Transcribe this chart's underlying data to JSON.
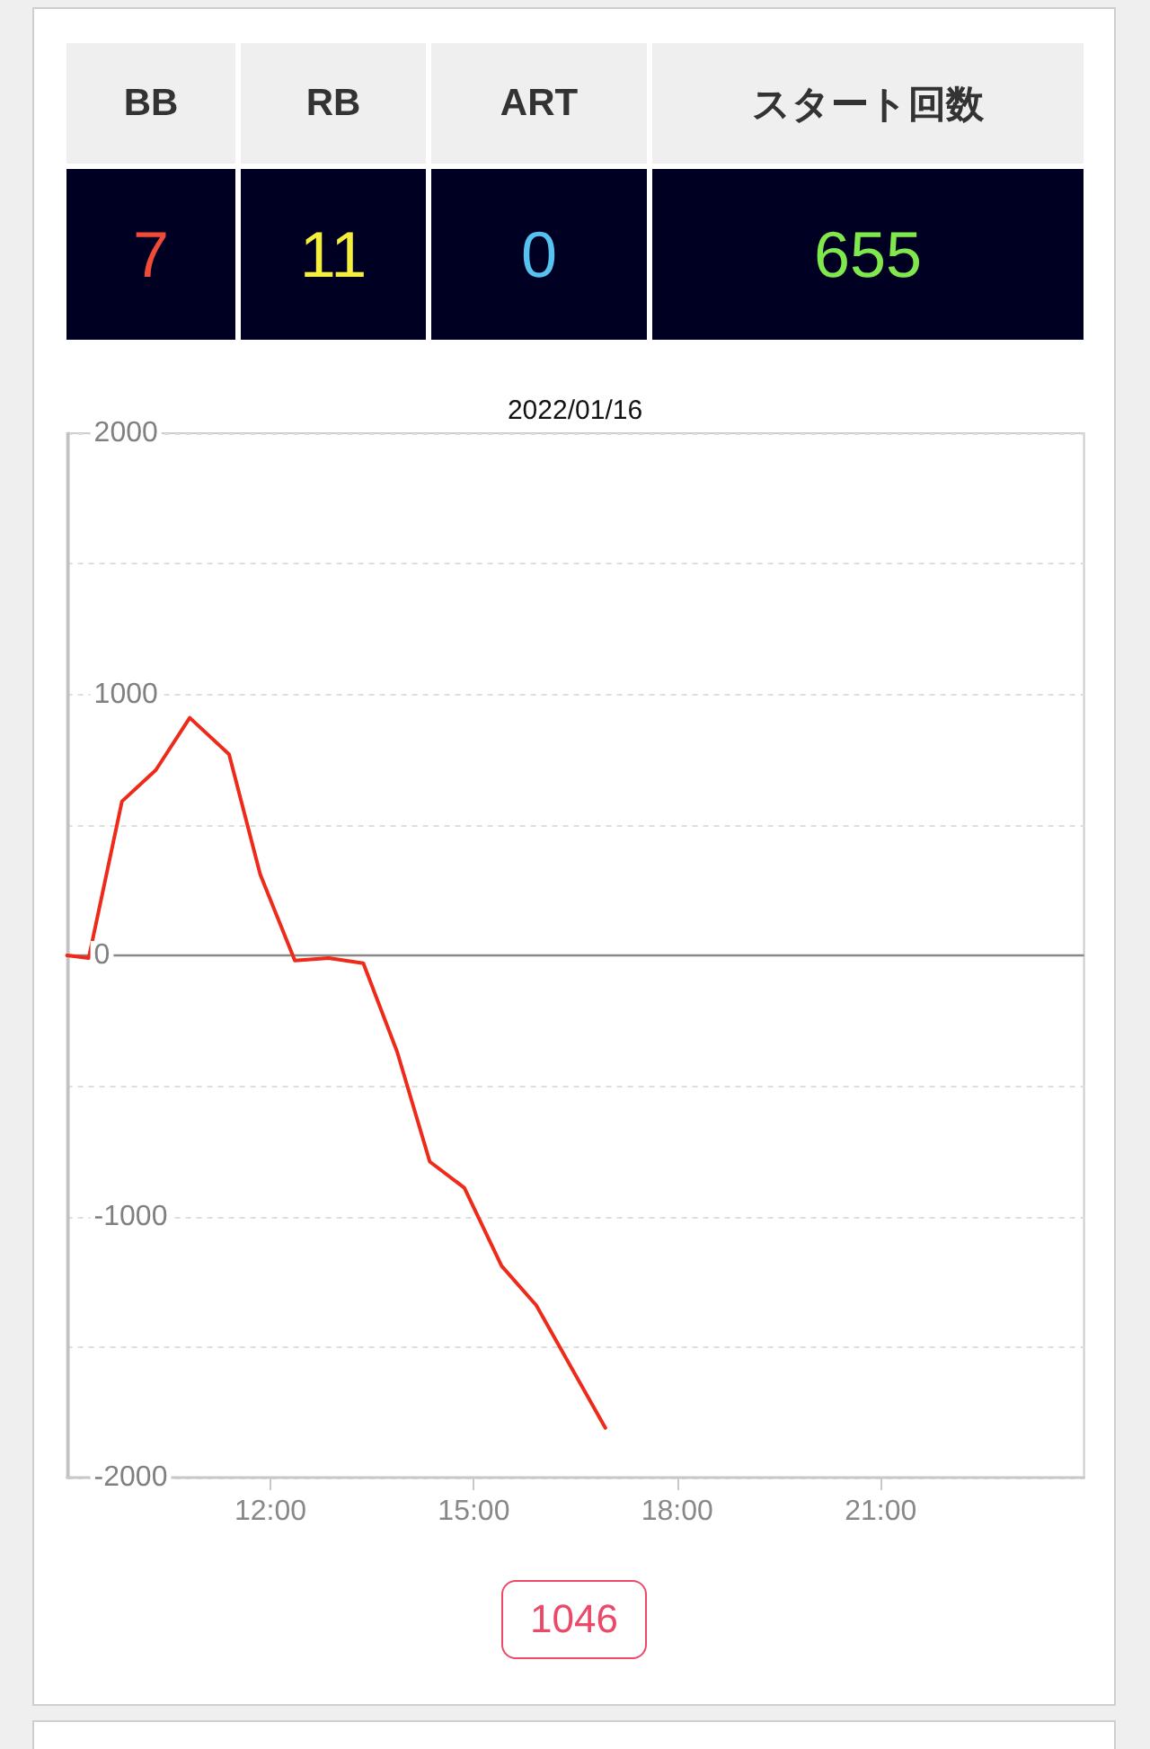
{
  "chart_data": [
    {
      "type": "other",
      "categories": [
        "BB",
        "RB",
        "ART",
        "スタート回数"
      ],
      "values": [
        7,
        11,
        0,
        655
      ],
      "data_labels": true
    },
    {
      "type": "line",
      "title": "2022/01/16",
      "x": [
        9,
        9.32,
        9.81,
        10.31,
        10.81,
        11.39,
        11.85,
        12.36,
        12.86,
        13.37,
        13.87,
        14.35,
        14.86,
        15.41,
        15.92,
        16.94
      ],
      "series": [
        {
          "color": "#ee2a1a",
          "values": [
            0,
            -10,
            590,
            710,
            910,
            770,
            310,
            -20,
            -10,
            -30,
            -370,
            -790,
            -890,
            -1190,
            -1340,
            -1810
          ]
        }
      ],
      "xlim": [
        9,
        24
      ],
      "xticks": [
        {
          "value": 12,
          "label": "12:00"
        },
        {
          "value": 15,
          "label": "15:00"
        },
        {
          "value": 18,
          "label": "18:00"
        },
        {
          "value": 21,
          "label": "21:00"
        }
      ],
      "ylim": [
        -2000,
        2000
      ],
      "yticks": [
        -2000,
        {
          "value": -1500,
          "label": null
        },
        -1000,
        {
          "value": -500,
          "label": null
        },
        0,
        {
          "value": 500,
          "label": null
        },
        1000,
        {
          "value": 1500,
          "label": null
        },
        2000
      ],
      "grid": "y",
      "marker": "none",
      "ref_lines": [
        {
          "axis": "y",
          "value": 0,
          "color": "#888888"
        }
      ],
      "annotations": [
        "1046"
      ]
    }
  ]
}
